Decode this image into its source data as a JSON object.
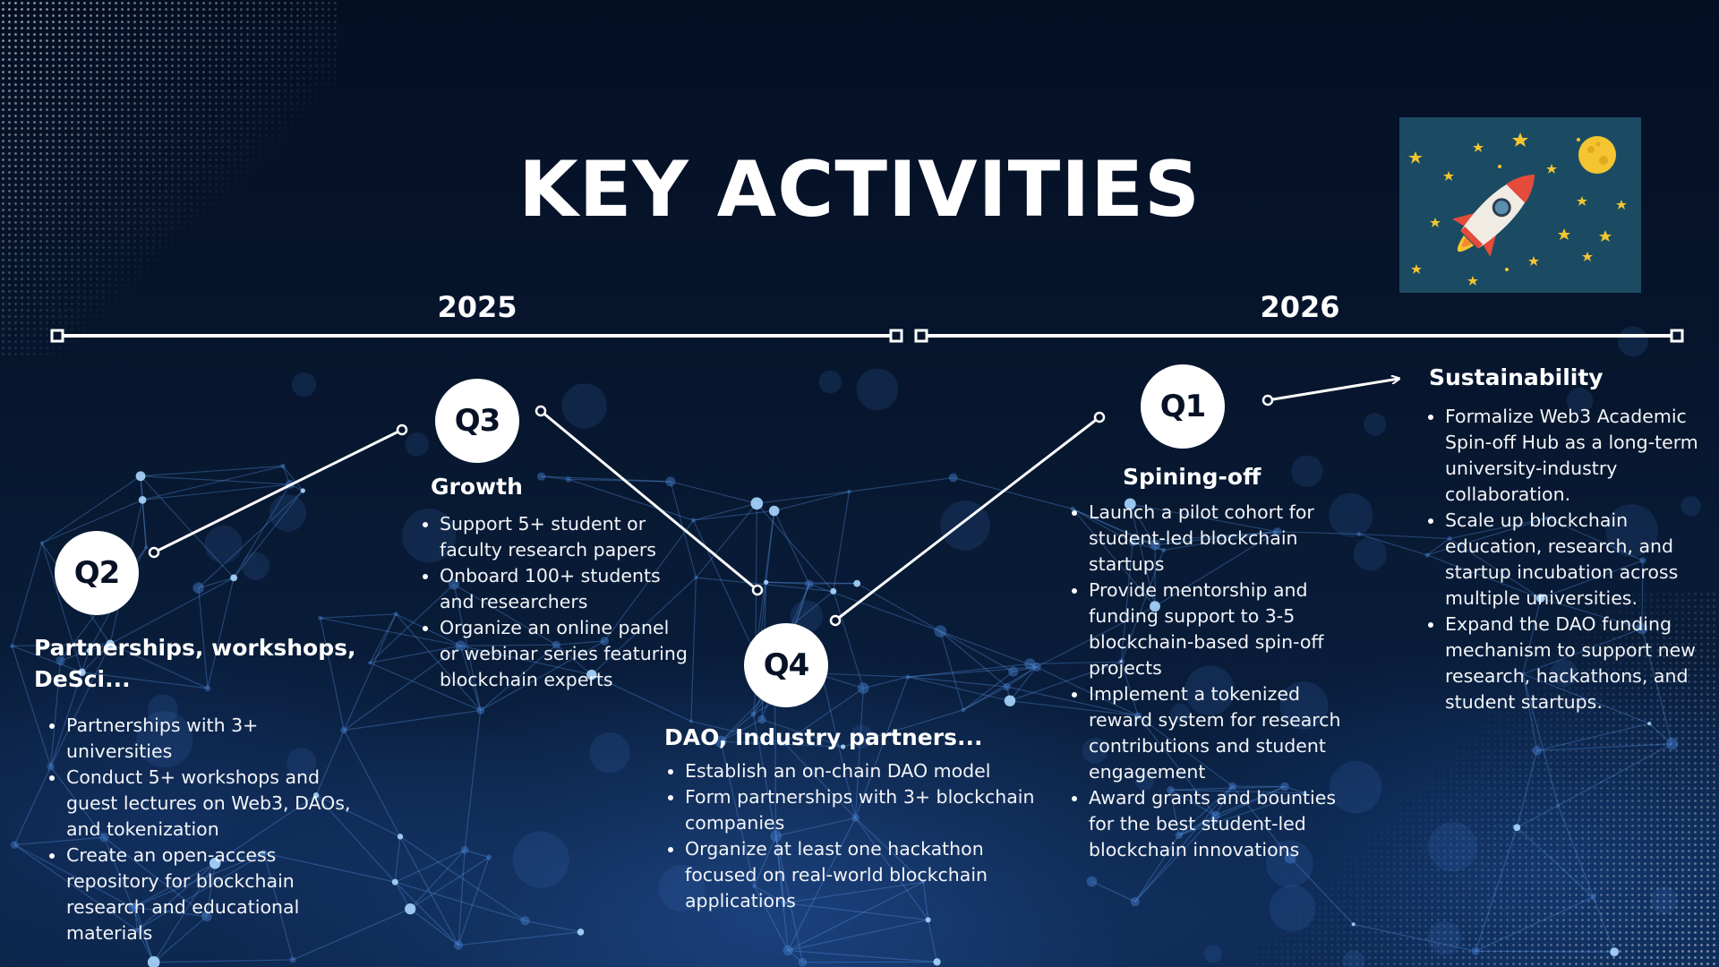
{
  "title": "KEY ACTIVITIES",
  "years": [
    {
      "label": "2025"
    },
    {
      "label": "2026"
    }
  ],
  "quarters": [
    {
      "badge": "Q2",
      "heading": "Partnerships, workshops, DeSci...",
      "items": [
        "Partnerships with 3+ universities",
        "Conduct 5+ workshops and guest lectures on Web3, DAOs, and tokenization",
        "Create an open-access repository for blockchain research and educational materials"
      ]
    },
    {
      "badge": "Q3",
      "heading": "Growth",
      "items": [
        "Support 5+ student or faculty research papers",
        "Onboard 100+ students and researchers",
        "Organize an online panel or webinar series featuring blockchain experts"
      ]
    },
    {
      "badge": "Q4",
      "heading": "DAO, Industry partners...",
      "items": [
        "Establish an on-chain DAO model",
        "Form partnerships with 3+ blockchain companies",
        "Organize at least one hackathon focused on real-world blockchain applications"
      ]
    },
    {
      "badge": "Q1",
      "heading": "Spining-off",
      "items": [
        "Launch a pilot cohort for student-led blockchain startups",
        "Provide mentorship and funding support to 3-5 blockchain-based spin-off projects",
        "Implement a tokenized reward system for research contributions and student engagement",
        "Award grants and bounties for the best student-led blockchain innovations"
      ]
    },
    {
      "badge": "",
      "heading": "Sustainability",
      "items": [
        "Formalize Web3 Academic Spin-off Hub as a long-term university-industry collaboration.",
        "Scale up blockchain education, research, and startup incubation across multiple universities.",
        "Expand the DAO funding mechanism to support new research, hackathons, and student startups."
      ]
    }
  ],
  "illustration": {
    "icon": "rocket-icon"
  },
  "colors": {
    "background": "#06152d",
    "line": "#ffffff",
    "badge": "#ffffff",
    "badge_text": "#081226",
    "card": "#1a4a60"
  }
}
